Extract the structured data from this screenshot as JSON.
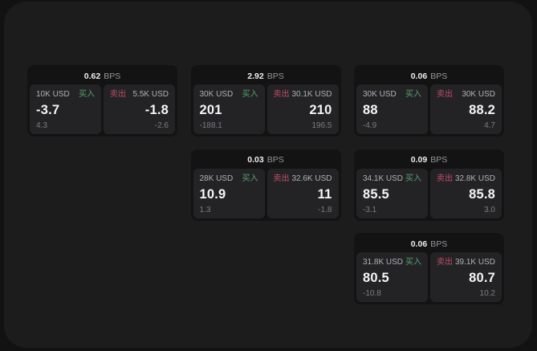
{
  "colors": {
    "outer_background": "#121213",
    "panel_background": "#1c1c1d",
    "card_background": "#131314",
    "tile_background": "#232326",
    "buy_accent": "#54a46c",
    "sell_accent": "#c04e66",
    "primary_text": "#f5f5f6",
    "muted_text": "#97979b"
  },
  "cards": [
    {
      "bps_value": "0.62",
      "bps_unit": "BPS",
      "buy": {
        "amount": "10K USD",
        "side_label": "买入",
        "price": "-3.7",
        "delta": "4.3"
      },
      "sell": {
        "amount": "5.5K USD",
        "side_label": "卖出",
        "price": "-1.8",
        "delta": "-2.6"
      }
    },
    {
      "bps_value": "2.92",
      "bps_unit": "BPS",
      "buy": {
        "amount": "30K USD",
        "side_label": "买入",
        "price": "201",
        "delta": "-188.1"
      },
      "sell": {
        "amount": "30.1K USD",
        "side_label": "卖出",
        "price": "210",
        "delta": "196.5"
      }
    },
    {
      "bps_value": "0.06",
      "bps_unit": "BPS",
      "buy": {
        "amount": "30K USD",
        "side_label": "买入",
        "price": "88",
        "delta": "-4.9"
      },
      "sell": {
        "amount": "30K USD",
        "side_label": "卖出",
        "price": "88.2",
        "delta": "4.7"
      }
    },
    {
      "bps_value": "0.03",
      "bps_unit": "BPS",
      "buy": {
        "amount": "28K USD",
        "side_label": "买入",
        "price": "10.9",
        "delta": "1.3"
      },
      "sell": {
        "amount": "32.6K USD",
        "side_label": "卖出",
        "price": "11",
        "delta": "-1.8"
      }
    },
    {
      "bps_value": "0.09",
      "bps_unit": "BPS",
      "buy": {
        "amount": "34.1K USD",
        "side_label": "买入",
        "price": "85.5",
        "delta": "-3.1"
      },
      "sell": {
        "amount": "32.8K USD",
        "side_label": "卖出",
        "price": "85.8",
        "delta": "3.0"
      }
    },
    {
      "bps_value": "0.06",
      "bps_unit": "BPS",
      "buy": {
        "amount": "31.8K USD",
        "side_label": "买入",
        "price": "80.5",
        "delta": "-10.8"
      },
      "sell": {
        "amount": "39.1K USD",
        "side_label": "卖出",
        "price": "80.7",
        "delta": "10.2"
      }
    }
  ]
}
